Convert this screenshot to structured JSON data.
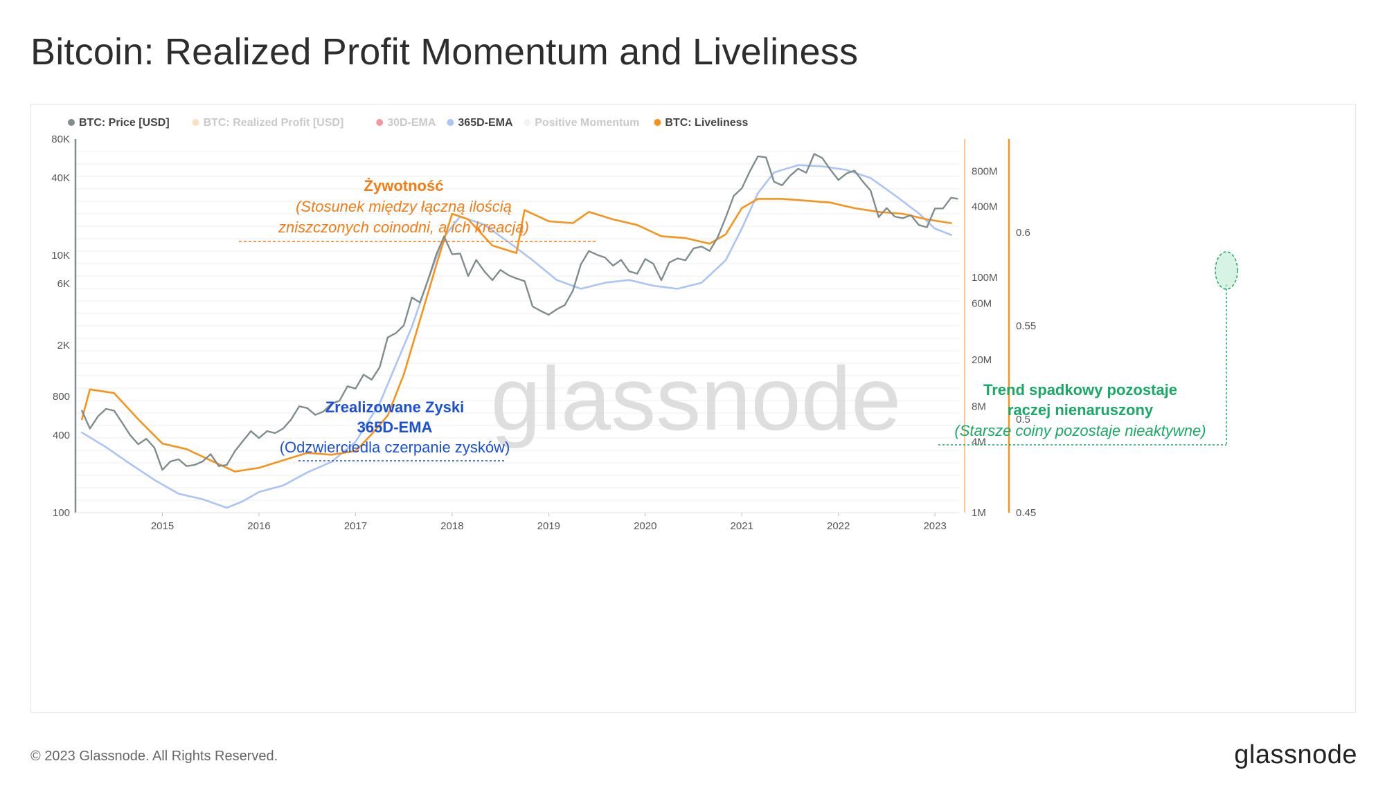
{
  "title": "Bitcoin: Realized Profit Momentum and Liveliness",
  "footer": {
    "copyright": "© 2023 Glassnode. All Rights Reserved.",
    "logo": "glassnode"
  },
  "watermark": "glassnode",
  "legend": [
    {
      "label": "BTC: Price [USD]",
      "color": "#7f8c8d",
      "faded": false
    },
    {
      "label": "BTC: Realized Profit [USD]",
      "color": "#f5c896",
      "faded": true
    },
    {
      "label": "30D-EMA",
      "color": "#e8434e",
      "faded": true
    },
    {
      "label": "365D-EMA",
      "color": "#a9c4f5",
      "faded": false
    },
    {
      "label": "Positive Momentum",
      "color": "#e6e9f5",
      "faded": true
    },
    {
      "label": "BTC: Liveliness",
      "color": "#f7931a",
      "faded": false
    }
  ],
  "annotations": {
    "liveliness": {
      "title": "Żywotność",
      "line1": "(Stosunek między łączną ilością",
      "line2": "zniszczonych coinodni, a ich kreacją)",
      "color": "#f07d16"
    },
    "profit": {
      "title1": "Zrealizowane Zyski",
      "title2": "365D-EMA",
      "line1": "(Odzwierciedla czerpanie zysków)",
      "color": "#1a4fd6"
    },
    "trend": {
      "title1": "Trend spadkowy pozostaje",
      "title2": "raczej nienaruszony",
      "line1": "(Starsze coiny pozostaje nieaktywne)",
      "color": "#1aa866"
    }
  },
  "chart_data": {
    "type": "line",
    "x_axis": {
      "ticks": [
        "2015",
        "2016",
        "2017",
        "2018",
        "2019",
        "2020",
        "2021",
        "2022",
        "2023"
      ]
    },
    "y_left": {
      "label": "BTC: Price [USD]",
      "scale": "log",
      "ticks": [
        "100",
        "400",
        "800",
        "2K",
        "6K",
        "10K",
        "40K",
        "80K"
      ],
      "range": [
        100,
        80000
      ]
    },
    "y_right1": {
      "label": "BTC: Realized Profit [USD]",
      "scale": "log",
      "ticks": [
        "1M",
        "4M",
        "8M",
        "20M",
        "60M",
        "100M",
        "400M",
        "800M"
      ],
      "range": [
        1000000,
        1500000000
      ]
    },
    "y_right2": {
      "label": "BTC: Liveliness",
      "scale": "linear",
      "ticks": [
        "0.45",
        "0.5",
        "0.55",
        "0.6"
      ],
      "range": [
        0.45,
        0.65
      ]
    },
    "series": [
      {
        "name": "BTC: Price [USD]",
        "axis": "left",
        "color": "#7f8c8d",
        "points": [
          [
            "2014-03",
            620
          ],
          [
            "2014-04",
            450
          ],
          [
            "2014-05",
            560
          ],
          [
            "2014-06",
            640
          ],
          [
            "2014-07",
            620
          ],
          [
            "2014-08",
            500
          ],
          [
            "2014-09",
            400
          ],
          [
            "2014-10",
            340
          ],
          [
            "2014-11",
            375
          ],
          [
            "2014-12",
            320
          ],
          [
            "2015-01",
            215
          ],
          [
            "2015-02",
            250
          ],
          [
            "2015-03",
            260
          ],
          [
            "2015-04",
            230
          ],
          [
            "2015-05",
            235
          ],
          [
            "2015-06",
            250
          ],
          [
            "2015-07",
            285
          ],
          [
            "2015-08",
            230
          ],
          [
            "2015-09",
            235
          ],
          [
            "2015-10",
            300
          ],
          [
            "2015-11",
            360
          ],
          [
            "2015-12",
            430
          ],
          [
            "2016-01",
            380
          ],
          [
            "2016-02",
            430
          ],
          [
            "2016-03",
            415
          ],
          [
            "2016-04",
            450
          ],
          [
            "2016-05",
            530
          ],
          [
            "2016-06",
            670
          ],
          [
            "2016-07",
            650
          ],
          [
            "2016-08",
            575
          ],
          [
            "2016-09",
            610
          ],
          [
            "2016-10",
            700
          ],
          [
            "2016-11",
            740
          ],
          [
            "2016-12",
            960
          ],
          [
            "2017-01",
            920
          ],
          [
            "2017-02",
            1180
          ],
          [
            "2017-03",
            1080
          ],
          [
            "2017-04",
            1350
          ],
          [
            "2017-05",
            2300
          ],
          [
            "2017-06",
            2480
          ],
          [
            "2017-07",
            2850
          ],
          [
            "2017-08",
            4700
          ],
          [
            "2017-09",
            4300
          ],
          [
            "2017-10",
            6400
          ],
          [
            "2017-11",
            10000
          ],
          [
            "2017-12",
            14000
          ],
          [
            "2018-01",
            10200
          ],
          [
            "2018-02",
            10300
          ],
          [
            "2018-03",
            6900
          ],
          [
            "2018-04",
            9200
          ],
          [
            "2018-05",
            7500
          ],
          [
            "2018-06",
            6400
          ],
          [
            "2018-07",
            7700
          ],
          [
            "2018-08",
            7000
          ],
          [
            "2018-09",
            6600
          ],
          [
            "2018-10",
            6300
          ],
          [
            "2018-11",
            4000
          ],
          [
            "2018-12",
            3700
          ],
          [
            "2019-01",
            3450
          ],
          [
            "2019-02",
            3800
          ],
          [
            "2019-03",
            4100
          ],
          [
            "2019-04",
            5300
          ],
          [
            "2019-05",
            8500
          ],
          [
            "2019-06",
            10800
          ],
          [
            "2019-07",
            10100
          ],
          [
            "2019-08",
            9600
          ],
          [
            "2019-09",
            8300
          ],
          [
            "2019-10",
            9200
          ],
          [
            "2019-11",
            7500
          ],
          [
            "2019-12",
            7200
          ],
          [
            "2020-01",
            9350
          ],
          [
            "2020-02",
            8600
          ],
          [
            "2020-03",
            6400
          ],
          [
            "2020-04",
            8800
          ],
          [
            "2020-05",
            9450
          ],
          [
            "2020-06",
            9140
          ],
          [
            "2020-07",
            11300
          ],
          [
            "2020-08",
            11700
          ],
          [
            "2020-09",
            10800
          ],
          [
            "2020-10",
            13800
          ],
          [
            "2020-11",
            19700
          ],
          [
            "2020-12",
            29000
          ],
          [
            "2021-01",
            33100
          ],
          [
            "2021-02",
            45000
          ],
          [
            "2021-03",
            58800
          ],
          [
            "2021-04",
            57700
          ],
          [
            "2021-05",
            37300
          ],
          [
            "2021-06",
            35000
          ],
          [
            "2021-07",
            41500
          ],
          [
            "2021-08",
            47100
          ],
          [
            "2021-09",
            43800
          ],
          [
            "2021-10",
            61300
          ],
          [
            "2021-11",
            57000
          ],
          [
            "2021-12",
            46300
          ],
          [
            "2022-01",
            38500
          ],
          [
            "2022-02",
            43200
          ],
          [
            "2022-03",
            45500
          ],
          [
            "2022-04",
            37700
          ],
          [
            "2022-05",
            31800
          ],
          [
            "2022-06",
            19800
          ],
          [
            "2022-07",
            23300
          ],
          [
            "2022-08",
            20000
          ],
          [
            "2022-09",
            19400
          ],
          [
            "2022-10",
            20500
          ],
          [
            "2022-11",
            17200
          ],
          [
            "2022-12",
            16500
          ],
          [
            "2023-01",
            23100
          ],
          [
            "2023-02",
            23100
          ],
          [
            "2023-03",
            28000
          ],
          [
            "2023-03-25",
            27500
          ]
        ]
      },
      {
        "name": "365D-EMA",
        "axis": "right1",
        "color": "#a9c4f5",
        "points": [
          [
            "2014-03",
            4800000
          ],
          [
            "2014-06",
            3600000
          ],
          [
            "2014-09",
            2600000
          ],
          [
            "2014-12",
            1900000
          ],
          [
            "2015-03",
            1450000
          ],
          [
            "2015-06",
            1300000
          ],
          [
            "2015-09",
            1100000
          ],
          [
            "2015-11",
            1250000
          ],
          [
            "2016-01",
            1500000
          ],
          [
            "2016-04",
            1700000
          ],
          [
            "2016-07",
            2200000
          ],
          [
            "2016-10",
            2700000
          ],
          [
            "2017-01",
            4000000
          ],
          [
            "2017-04",
            8500000
          ],
          [
            "2017-06",
            18000000
          ],
          [
            "2017-08",
            38000000
          ],
          [
            "2017-10",
            95000000
          ],
          [
            "2017-12",
            220000000
          ],
          [
            "2018-02",
            330000000
          ],
          [
            "2018-05",
            280000000
          ],
          [
            "2018-08",
            200000000
          ],
          [
            "2018-11",
            140000000
          ],
          [
            "2019-02",
            95000000
          ],
          [
            "2019-05",
            80000000
          ],
          [
            "2019-08",
            90000000
          ],
          [
            "2019-11",
            95000000
          ],
          [
            "2020-02",
            85000000
          ],
          [
            "2020-05",
            80000000
          ],
          [
            "2020-08",
            90000000
          ],
          [
            "2020-11",
            140000000
          ],
          [
            "2021-01",
            260000000
          ],
          [
            "2021-03",
            520000000
          ],
          [
            "2021-05",
            780000000
          ],
          [
            "2021-08",
            900000000
          ],
          [
            "2021-11",
            880000000
          ],
          [
            "2022-02",
            820000000
          ],
          [
            "2022-05",
            700000000
          ],
          [
            "2022-08",
            500000000
          ],
          [
            "2022-11",
            350000000
          ],
          [
            "2023-01",
            260000000
          ],
          [
            "2023-03",
            230000000
          ]
        ]
      },
      {
        "name": "BTC: Liveliness",
        "axis": "right2",
        "color": "#f7931a",
        "points": [
          [
            "2014-03",
            0.5
          ],
          [
            "2014-04",
            0.516
          ],
          [
            "2014-07",
            0.514
          ],
          [
            "2014-10",
            0.5
          ],
          [
            "2015-01",
            0.487
          ],
          [
            "2015-04",
            0.484
          ],
          [
            "2015-07",
            0.478
          ],
          [
            "2015-10",
            0.472
          ],
          [
            "2016-01",
            0.474
          ],
          [
            "2016-04",
            0.478
          ],
          [
            "2016-07",
            0.482
          ],
          [
            "2016-10",
            0.481
          ],
          [
            "2017-01",
            0.483
          ],
          [
            "2017-03",
            0.492
          ],
          [
            "2017-05",
            0.502
          ],
          [
            "2017-07",
            0.524
          ],
          [
            "2017-09",
            0.553
          ],
          [
            "2017-11",
            0.582
          ],
          [
            "2018-01",
            0.61
          ],
          [
            "2018-03",
            0.607
          ],
          [
            "2018-06",
            0.593
          ],
          [
            "2018-09",
            0.589
          ],
          [
            "2018-10",
            0.612
          ],
          [
            "2019-01",
            0.606
          ],
          [
            "2019-04",
            0.605
          ],
          [
            "2019-06",
            0.611
          ],
          [
            "2019-09",
            0.607
          ],
          [
            "2019-12",
            0.604
          ],
          [
            "2020-03",
            0.598
          ],
          [
            "2020-06",
            0.597
          ],
          [
            "2020-09",
            0.594
          ],
          [
            "2020-11",
            0.599
          ],
          [
            "2021-01",
            0.613
          ],
          [
            "2021-03",
            0.618
          ],
          [
            "2021-06",
            0.618
          ],
          [
            "2021-09",
            0.617
          ],
          [
            "2021-12",
            0.616
          ],
          [
            "2022-03",
            0.613
          ],
          [
            "2022-06",
            0.611
          ],
          [
            "2022-09",
            0.61
          ],
          [
            "2022-12",
            0.607
          ],
          [
            "2023-03",
            0.605
          ]
        ]
      }
    ]
  }
}
